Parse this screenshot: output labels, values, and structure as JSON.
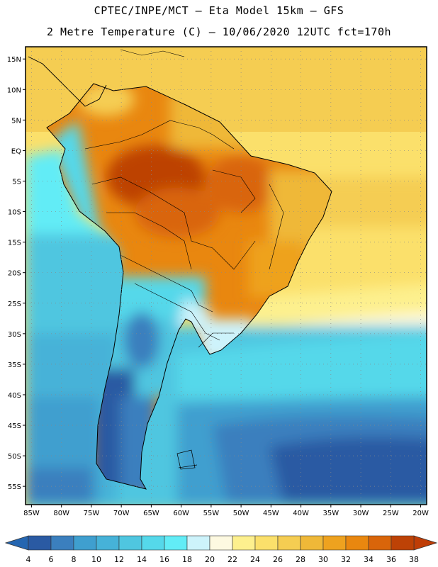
{
  "header": {
    "title_line1": "CPTEC/INPE/MCT –  Eta Model 15km – GFS",
    "title_line2": "2 Metre Temperature (C) – 10/06/2020 12UTC fct=170h"
  },
  "map": {
    "lat_labels": [
      "15N",
      "10N",
      "5N",
      "EQ",
      "5S",
      "10S",
      "15S",
      "20S",
      "25S",
      "30S",
      "35S",
      "40S",
      "45S",
      "50S",
      "55S"
    ],
    "lon_labels": [
      "85W",
      "80W",
      "75W",
      "70W",
      "65W",
      "60W",
      "55W",
      "50W",
      "45W",
      "40W",
      "35W",
      "30W",
      "25W",
      "20W"
    ],
    "lat_range": [
      17,
      -58
    ],
    "lon_range": [
      -86,
      -19
    ]
  },
  "legend": {
    "values": [
      "4",
      "6",
      "8",
      "10",
      "12",
      "14",
      "16",
      "18",
      "20",
      "22",
      "24",
      "26",
      "28",
      "30",
      "32",
      "34",
      "36",
      "38"
    ],
    "colors": [
      "#2a5aa3",
      "#3b7fbe",
      "#3f9fcf",
      "#46b2d8",
      "#4fc6e0",
      "#55d8ea",
      "#62ecf6",
      "#cdf3fb",
      "#fdf9e1",
      "#fdf08e",
      "#fbe06b",
      "#f5cd52",
      "#efb838",
      "#eea21f",
      "#e9870f",
      "#d9650a",
      "#bd4206"
    ],
    "low_arrow_color": "#2566b1",
    "high_arrow_color": "#bf3d06"
  }
}
